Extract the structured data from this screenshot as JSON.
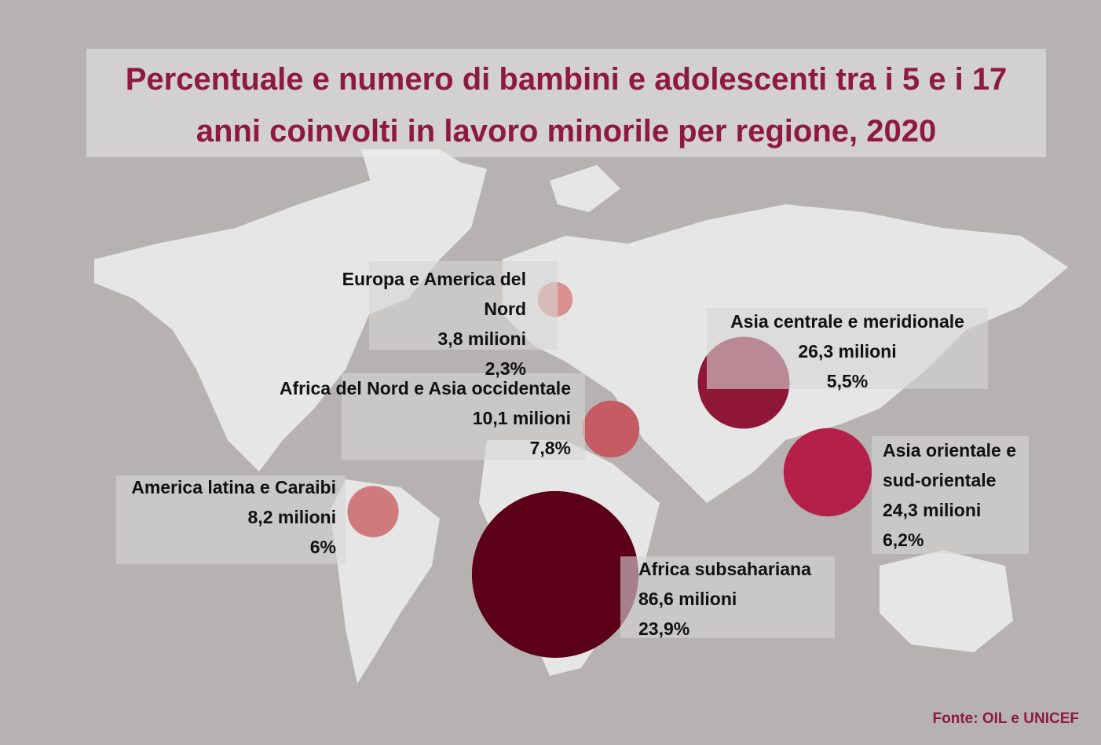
{
  "chart_data": {
    "type": "bubble-map",
    "title": "Percentuale e numero di bambini e adolescenti tra i 5 e i 17 anni coinvolti in lavoro minorile per regione, 2020",
    "categories": [
      "Europa e America del Nord",
      "Africa del Nord e Asia occidentale",
      "Asia centrale e meridionale",
      "Asia orientale e sud-orientale",
      "America latina e Caraibi",
      "Africa subsahariana"
    ],
    "values": [
      3.8,
      10.1,
      26.3,
      24.3,
      8.2,
      86.6
    ],
    "value_labels": [
      "3,8 milioni",
      "10,1 milioni",
      "26,3 milioni",
      "24,3 milioni",
      "8,2 milioni",
      "86,6 milioni"
    ],
    "shares": [
      2.3,
      7.8,
      5.5,
      6.2,
      6,
      23.9
    ],
    "share_labels": [
      "2,3%",
      "7,8%",
      "5,5%",
      "6,2%",
      "6%",
      "23,9%"
    ],
    "colors": [
      "#d9918f",
      "#c55c64",
      "#8e1737",
      "#b4204a",
      "#cf7b7d",
      "#5c0019"
    ],
    "source": "Fonte: OIL e UNICEF"
  }
}
